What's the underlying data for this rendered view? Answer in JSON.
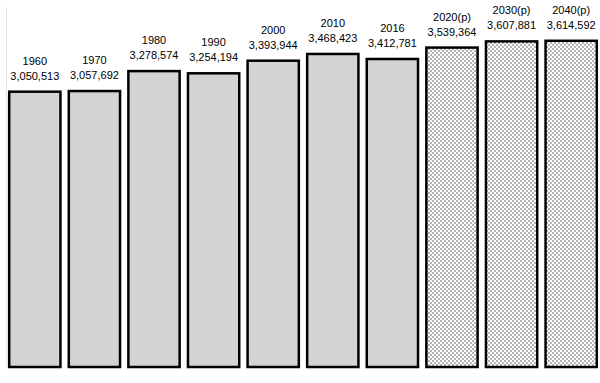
{
  "chart_data": {
    "type": "bar",
    "categories": [
      "1960",
      "1970",
      "1980",
      "1990",
      "2000",
      "2010",
      "2016",
      "2020(p)",
      "2030(p)",
      "2040(p)"
    ],
    "values": [
      3050513,
      3057692,
      3278574,
      3254194,
      3393944,
      3468423,
      3412781,
      3539364,
      3607881,
      3614592
    ],
    "value_labels": [
      "3,050,513",
      "3,057,692",
      "3,278,574",
      "3,254,194",
      "3,393,944",
      "3,468,423",
      "3,412,781",
      "3,539,364",
      "3,607,881",
      "3,614,592"
    ],
    "colors": [
      "#d3d3d3",
      "#d3d3d3",
      "#d3d3d3",
      "#d3d3d3",
      "#d3d3d3",
      "#d3d3d3",
      "#d3d3d3",
      "#ffffff",
      "#ffffff",
      "#ffffff"
    ],
    "ylim": [
      0,
      4000000
    ],
    "grid": false,
    "data_labels": true,
    "tick_labels": false
  }
}
